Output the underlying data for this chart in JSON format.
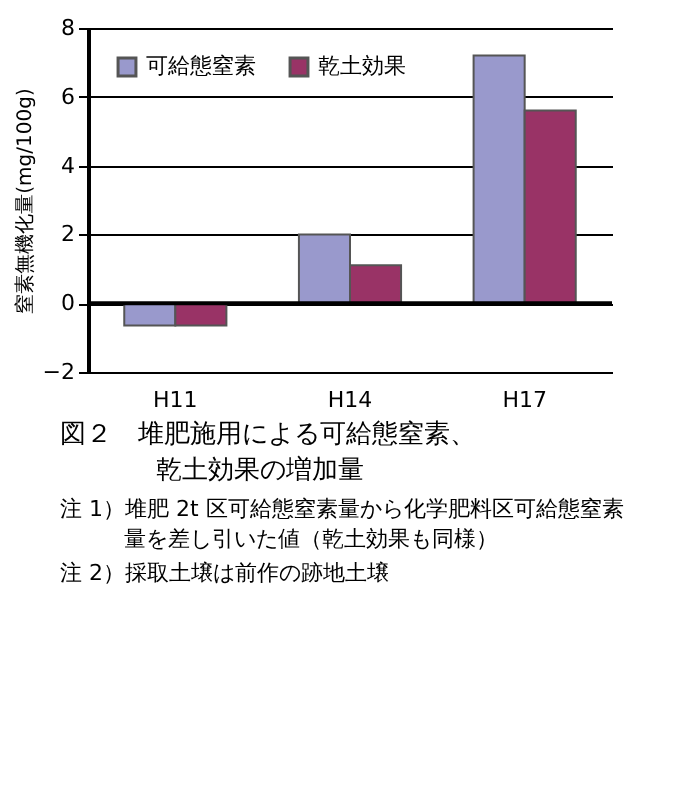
{
  "chart_data": {
    "type": "bar",
    "title": "図２　堆肥施用による可給態窒素、乾土効果の増加量",
    "ylabel": "窒素無機化量(mg/100g)",
    "categories": [
      "H11",
      "H14",
      "H17"
    ],
    "series": [
      {
        "name": "可給態窒素",
        "color": "#9999cc",
        "values": [
          -0.65,
          2.0,
          7.2
        ]
      },
      {
        "name": "乾土効果",
        "color": "#993366",
        "values": [
          -0.65,
          1.1,
          5.6
        ]
      }
    ],
    "ylim": [
      -2,
      8
    ],
    "yticks": [
      -2,
      0,
      2,
      4,
      6,
      8
    ],
    "grid": "y",
    "legend": "top left",
    "annotations": [
      "注 1）堆肥 2t 区可給態窒素量から化学肥料区可給態窒素量を差し引いた値（乾土効果も同様）",
      "注 2）採取土壌は前作の跡地土壌"
    ]
  }
}
